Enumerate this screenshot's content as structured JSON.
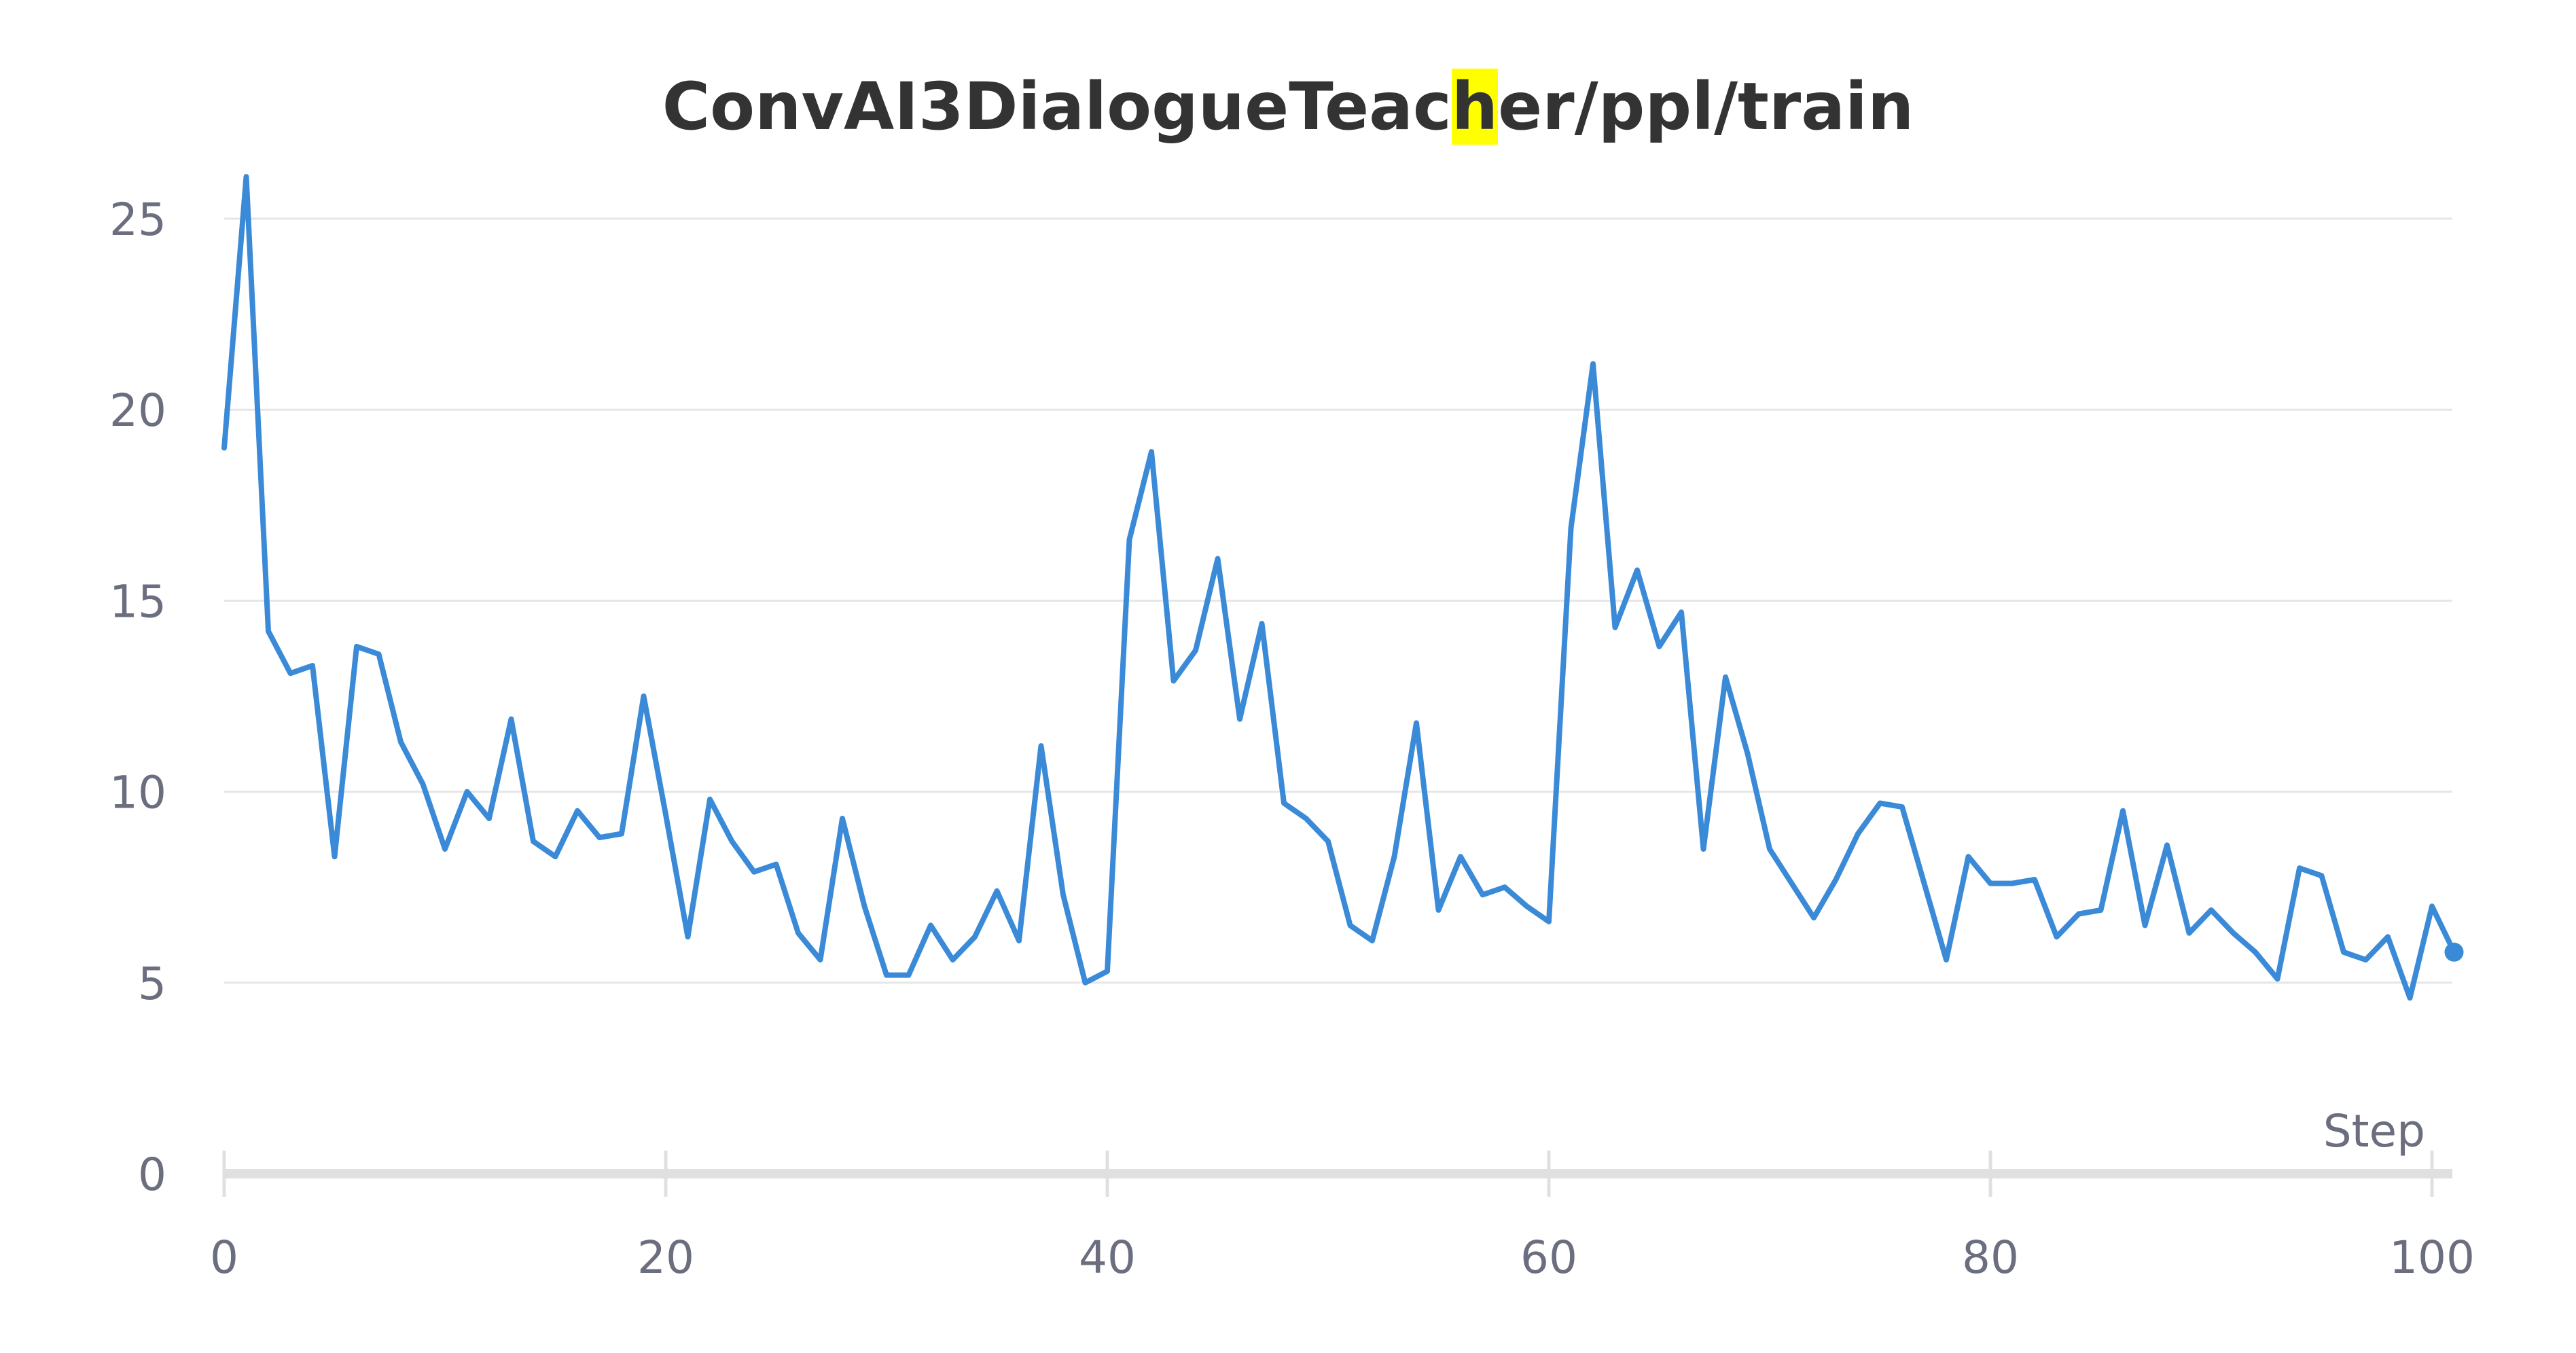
{
  "title": {
    "before": "ConvAI3DialogueTeac",
    "highlight": "h",
    "after": "er/ppl/train"
  },
  "colors": {
    "line": "#3a8ad8",
    "grid": "#e6e6e6",
    "axis": "#e0e0e0",
    "tick_text": "#6b6e7e",
    "title_text": "#333333",
    "highlight": "#ffff00"
  },
  "chart_data": {
    "type": "line",
    "title": "ConvAI3DialogueTeacher/ppl/train",
    "xlabel": "Step",
    "ylabel": "",
    "xlim": [
      0,
      101
    ],
    "ylim": [
      0,
      26
    ],
    "xticks": [
      0,
      20,
      40,
      60,
      80,
      100
    ],
    "yticks": [
      0,
      5,
      10,
      15,
      20,
      25
    ],
    "grid": true,
    "series": [
      {
        "x": [
          0,
          1,
          2,
          3,
          4,
          5,
          6,
          7,
          8,
          9,
          10,
          11,
          12,
          13,
          14,
          15,
          16,
          17,
          18,
          19,
          20,
          21,
          22,
          23,
          24,
          25,
          26,
          27,
          28,
          29,
          30,
          31,
          32,
          33,
          34,
          35,
          36,
          37,
          38,
          39,
          40,
          41,
          42,
          43,
          44,
          45,
          46,
          47,
          48,
          49,
          50,
          51,
          52,
          53,
          54,
          55,
          56,
          57,
          58,
          59,
          60,
          61,
          62,
          63,
          64,
          65,
          66,
          67,
          68,
          69,
          70,
          71,
          72,
          73,
          74,
          75,
          76,
          77,
          78,
          79,
          80,
          81,
          82,
          83,
          84,
          85,
          86,
          87,
          88,
          89,
          90,
          91,
          92,
          93,
          94,
          95,
          96,
          97,
          98,
          99,
          100,
          101
        ],
        "values": [
          19.0,
          26.1,
          14.2,
          13.1,
          13.3,
          8.3,
          13.8,
          13.6,
          11.3,
          10.2,
          8.5,
          10.0,
          9.3,
          11.9,
          8.7,
          8.3,
          9.5,
          8.8,
          8.9,
          12.5,
          9.4,
          6.2,
          9.8,
          8.7,
          7.9,
          8.1,
          6.3,
          5.6,
          9.3,
          7.0,
          5.2,
          5.2,
          6.5,
          5.6,
          6.2,
          7.4,
          6.1,
          11.2,
          7.3,
          5.0,
          5.3,
          16.6,
          18.9,
          12.9,
          13.7,
          16.1,
          11.9,
          14.4,
          9.7,
          9.3,
          8.7,
          6.5,
          6.1,
          8.3,
          11.8,
          6.9,
          8.3,
          7.3,
          7.5,
          7.0,
          6.6,
          16.9,
          21.2,
          14.3,
          15.8,
          13.8,
          14.7,
          8.5,
          13.0,
          11.0,
          8.5,
          7.6,
          6.7,
          7.7,
          8.9,
          9.7,
          9.6,
          7.6,
          5.6,
          8.3,
          7.6,
          7.6,
          7.7,
          6.2,
          6.8,
          6.9,
          9.5,
          6.5,
          8.6,
          6.3,
          6.9,
          6.3,
          5.8,
          5.1,
          8.0,
          7.8,
          5.8,
          5.6,
          6.2,
          4.6,
          7.0,
          5.8
        ]
      }
    ]
  }
}
